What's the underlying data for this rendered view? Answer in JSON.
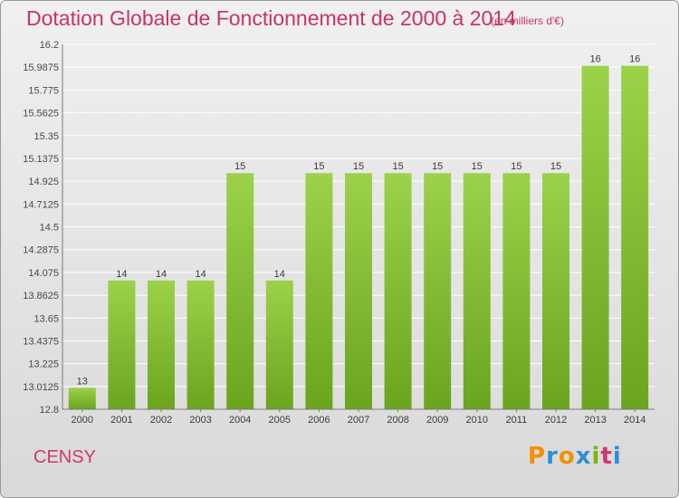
{
  "header": {
    "title": "Dotation Globale de Fonctionnement de 2000 à 2014",
    "unit": "(en milliers d'€)"
  },
  "footer": {
    "commune": "CENSY",
    "logo_text": [
      "P",
      "r",
      "o",
      "x",
      "i",
      "t",
      "i"
    ],
    "logo_colors": [
      "#f29100",
      "#2b8fd6",
      "#f29100",
      "#2b8fd6",
      "#7ab800",
      "#d0386e",
      "#2b8fd6"
    ]
  },
  "colors": {
    "title": "#c8336a",
    "bar_top": "#9bd24a",
    "bar_bottom": "#6aa51d",
    "grid": "#ffffff",
    "background_top": "#f0f0f0",
    "background_bottom": "#d9d9d9"
  },
  "chart_data": {
    "type": "bar",
    "title": "Dotation Globale de Fonctionnement de 2000 à 2014",
    "unit": "(en milliers d'€)",
    "categories": [
      "2000",
      "2001",
      "2002",
      "2003",
      "2004",
      "2005",
      "2006",
      "2007",
      "2008",
      "2009",
      "2010",
      "2011",
      "2012",
      "2013",
      "2014"
    ],
    "values": [
      13,
      14,
      14,
      14,
      15,
      14,
      15,
      15,
      15,
      15,
      15,
      15,
      15,
      16,
      16
    ],
    "data_labels": [
      "13",
      "14",
      "14",
      "14",
      "15",
      "14",
      "15",
      "15",
      "15",
      "15",
      "15",
      "15",
      "15",
      "16",
      "16"
    ],
    "yticks": [
      "12.8",
      "13.0125",
      "13.225",
      "13.4375",
      "13.65",
      "13.8625",
      "14.075",
      "14.2875",
      "14.5",
      "14.7125",
      "14.925",
      "15.1375",
      "15.35",
      "15.5625",
      "15.775",
      "15.9875",
      "16.2"
    ],
    "ylim": [
      12.8,
      16.2
    ],
    "grid": true
  }
}
